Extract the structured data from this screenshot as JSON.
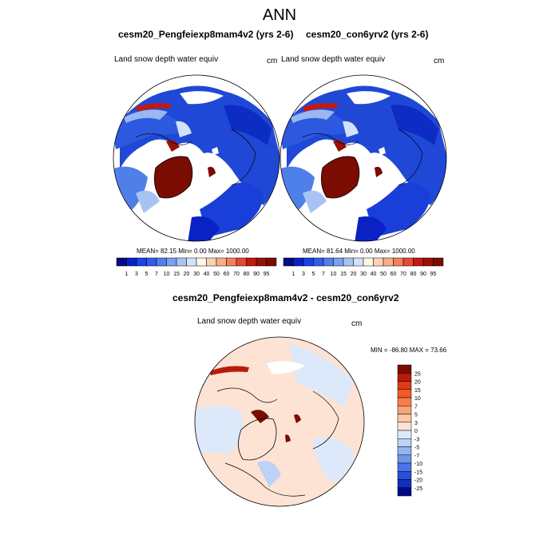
{
  "page_title": "ANN",
  "chart_data": [
    {
      "type": "heatmap",
      "projection": "north-polar-stereographic",
      "case_title": "cesm20_Pengfeiexp8mam4v2 (yrs 2-6)",
      "variable_label": "Land snow depth water equiv",
      "units": "cm",
      "mean": 82.15,
      "min": 0.0,
      "max": 1000.0,
      "stats_text": "MEAN=  82.15  Min=   0.00  Max= 1000.00",
      "colorbar": {
        "orientation": "horizontal",
        "levels": [
          "1",
          "3",
          "5",
          "7",
          "10",
          "15",
          "20",
          "30",
          "40",
          "50",
          "60",
          "70",
          "80",
          "90",
          "95"
        ],
        "colors": [
          "#000b85",
          "#0a22c4",
          "#1c41e6",
          "#2f5de8",
          "#4f7fe8",
          "#7ba0ee",
          "#a8c3f3",
          "#d2e2f8",
          "#fff5e8",
          "#fcd2b6",
          "#f9ad8a",
          "#f2805d",
          "#e24a33",
          "#c21a10",
          "#991006",
          "#7a0c02"
        ]
      }
    },
    {
      "type": "heatmap",
      "projection": "north-polar-stereographic",
      "case_title": "cesm20_con6yrv2 (yrs 2-6)",
      "variable_label": "Land snow depth water equiv",
      "units": "cm",
      "mean": 81.64,
      "min": 0.0,
      "max": 1000.0,
      "stats_text": "MEAN=  81.64  Min=   0.00  Max= 1000.00",
      "colorbar": {
        "orientation": "horizontal",
        "levels": [
          "1",
          "3",
          "5",
          "7",
          "10",
          "15",
          "20",
          "30",
          "40",
          "50",
          "60",
          "70",
          "80",
          "90",
          "95"
        ],
        "colors": [
          "#000b85",
          "#0a22c4",
          "#1c41e6",
          "#2f5de8",
          "#4f7fe8",
          "#7ba0ee",
          "#a8c3f3",
          "#d2e2f8",
          "#fff5e8",
          "#fcd2b6",
          "#f9ad8a",
          "#f2805d",
          "#e24a33",
          "#c21a10",
          "#991006",
          "#7a0c02"
        ]
      }
    },
    {
      "type": "heatmap",
      "projection": "north-polar-stereographic",
      "case_title": "cesm20_Pengfeiexp8mam4v2 - cesm20_con6yrv2",
      "variable_label": "Land snow depth water equiv",
      "units": "cm",
      "min": -86.8,
      "max": 73.66,
      "stats_text": "MIN = -86.80 MAX =  73.66",
      "colorbar": {
        "orientation": "vertical",
        "levels": [
          "25",
          "20",
          "15",
          "10",
          "7",
          "5",
          "3",
          "0",
          "-3",
          "-5",
          "-7",
          "-10",
          "-15",
          "-20",
          "-25"
        ],
        "colors": [
          "#7a0c02",
          "#b81a0c",
          "#e03a17",
          "#f25a22",
          "#f77d4b",
          "#f9a278",
          "#fbc7a6",
          "#fde3d3",
          "#dde9fa",
          "#bcd2f6",
          "#93b4f0",
          "#6d95ea",
          "#4a74e5",
          "#2a4fdc",
          "#1230bd",
          "#000b85"
        ]
      }
    }
  ]
}
